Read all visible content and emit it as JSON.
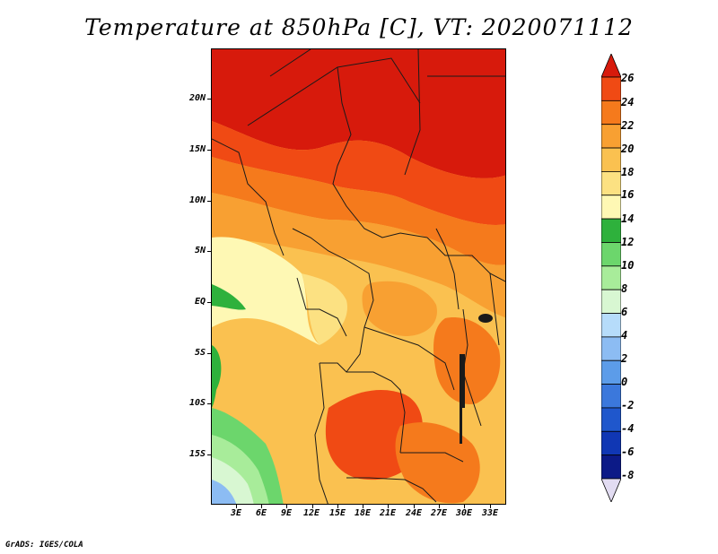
{
  "title": "Temperature at 850hPa [C], VT: 2020071112",
  "footer": "GrADS: IGES/COLA",
  "map": {
    "lat_ticks": [
      "20N",
      "15N",
      "10N",
      "5N",
      "EQ",
      "5S",
      "10S",
      "15S"
    ],
    "lon_ticks": [
      "3E",
      "6E",
      "9E",
      "12E",
      "15E",
      "18E",
      "21E",
      "24E",
      "27E",
      "30E",
      "33E"
    ]
  },
  "colorbar": {
    "labels": [
      "26",
      "24",
      "22",
      "20",
      "18",
      "16",
      "14",
      "12",
      "10",
      "8",
      "6",
      "4",
      "2",
      "0",
      "-2",
      "-4",
      "-6",
      "-8"
    ],
    "colors": [
      "#d71a0c",
      "#f04a14",
      "#f57a1c",
      "#f8a032",
      "#fac150",
      "#fce182",
      "#fef8b4",
      "#2eb13c",
      "#6cd66c",
      "#a8ec9a",
      "#d8f7d2",
      "#b6dcfa",
      "#8cbcf3",
      "#5c9ce9",
      "#3b78dc",
      "#1f57cc",
      "#1037b4",
      "#0c1a87",
      "#e2dcf2"
    ]
  }
}
